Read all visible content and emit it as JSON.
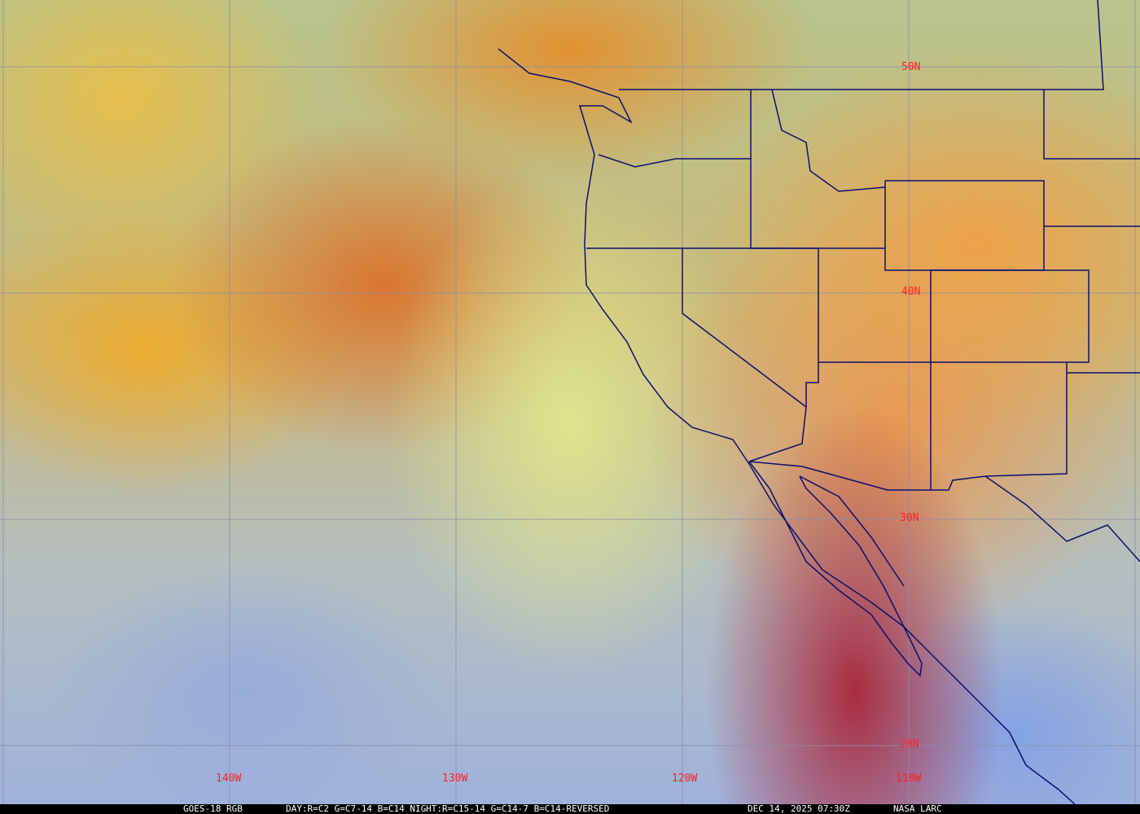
{
  "map": {
    "satellite": "GOES-18 RGB",
    "recipe": "DAY:R=C2 G=C7-14 B=C14 NIGHT:R=C15-14 G=C14-7 B=C14-REVERSED",
    "timestamp": "DEC 14, 2025 07:30Z",
    "credit": "NASA LARC",
    "longitude_labels": [
      "140W",
      "130W",
      "120W",
      "110W"
    ],
    "latitude_labels": [
      "50N",
      "40N",
      "30N",
      "20N"
    ],
    "colors": {
      "grid": "#8a8fa8",
      "borders": "#0a1070",
      "labels": "#ff2020",
      "caption_bg": "#000000",
      "caption_text": "#ffffff"
    }
  }
}
